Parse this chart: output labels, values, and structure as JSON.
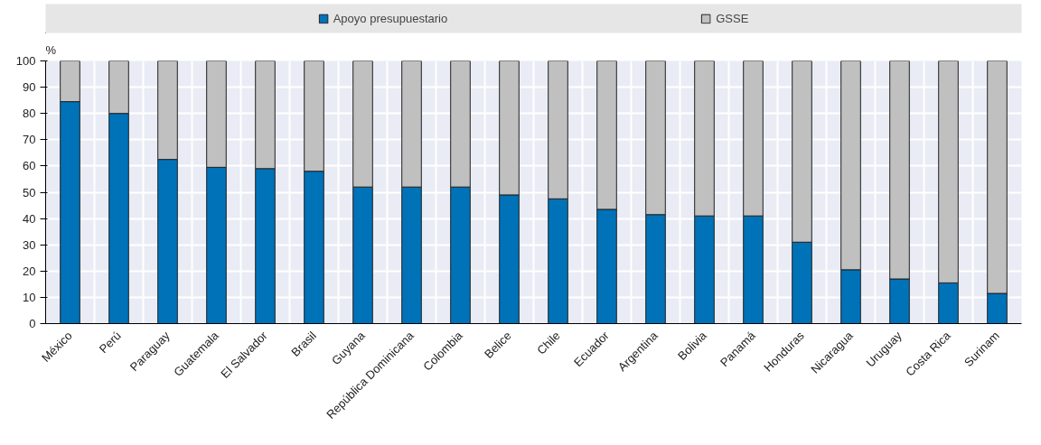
{
  "chart_data": {
    "type": "bar",
    "stacked": true,
    "ylabel": "%",
    "categories": [
      "México",
      "Perú",
      "Paraguay",
      "Guatemala",
      "El Salvador",
      "Brasil",
      "Guyana",
      "República Dominicana",
      "Colombia",
      "Belice",
      "Chile",
      "Ecuador",
      "Argentina",
      "Bolivia",
      "Panamá",
      "Honduras",
      "Nicaragua",
      "Uruguay",
      "Costa Rica",
      "Surinam"
    ],
    "series": [
      {
        "name": "Apoyo presupuestario",
        "color": "#0072b8",
        "values": [
          84.5,
          80,
          62.5,
          59.5,
          59,
          58,
          52,
          52,
          52,
          49,
          47.5,
          43.5,
          41.5,
          41,
          41,
          31,
          20.5,
          17,
          15.5,
          11.5
        ]
      },
      {
        "name": "GSSE",
        "color": "#c0c0c0",
        "values": [
          15.5,
          20,
          37.5,
          40.5,
          41,
          42,
          48,
          48,
          48,
          51,
          52.5,
          56.5,
          58.5,
          59,
          59,
          69,
          79.5,
          83,
          84.5,
          88.5
        ]
      }
    ],
    "ylim": [
      0,
      100
    ],
    "yticks": [
      0,
      10,
      20,
      30,
      40,
      50,
      60,
      70,
      80,
      90,
      100
    ],
    "grid": true,
    "legend": "top"
  }
}
